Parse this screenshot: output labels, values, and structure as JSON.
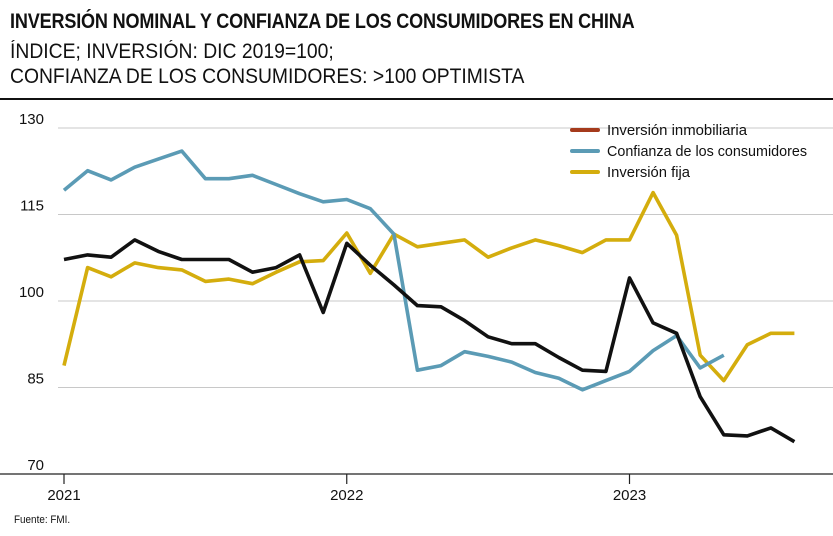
{
  "header": {
    "title": "INVERSIÓN NOMINAL Y CONFIANZA DE LOS CONSUMIDORES EN CHINA",
    "subtitle_line1": "ÍNDICE; INVERSIÓN: DIC 2019=100;",
    "subtitle_line2": "CONFIANZA DE LOS CONSUMIDORES: >100 OPTIMISTA"
  },
  "source": "Fuente: FMI.",
  "chart_data": {
    "type": "line",
    "title": "INVERSIÓN NOMINAL Y CONFIANZA DE LOS CONSUMIDORES EN CHINA",
    "xlabel": "",
    "ylabel": "",
    "ylim": [
      70,
      130
    ],
    "yticks": [
      70,
      85,
      100,
      115,
      130
    ],
    "xticks": [
      {
        "label": "2021",
        "x": 0
      },
      {
        "label": "2022",
        "x": 12
      },
      {
        "label": "2023",
        "x": 24
      }
    ],
    "xlim": [
      0,
      32
    ],
    "legend_position": "top-right",
    "grid": true,
    "series": [
      {
        "name": "Inversión inmobiliaria",
        "color": "#a53a1c",
        "x": [
          0,
          1,
          2,
          3,
          4,
          5,
          6,
          7,
          8,
          9,
          10,
          11,
          12,
          13,
          14,
          15,
          16,
          17,
          18,
          19,
          20,
          21,
          22,
          23,
          24,
          25,
          26,
          27,
          28,
          29,
          30,
          31
        ],
        "values": [
          107.2,
          108,
          107.6,
          110.6,
          108.6,
          107.2,
          107.2,
          107.2,
          105,
          105.8,
          108,
          98,
          110,
          106.2,
          102.8,
          99.2,
          99,
          96.6,
          93.8,
          92.6,
          92.6,
          90.2,
          88,
          87.8,
          104,
          96.2,
          94.4,
          83.4,
          76.8,
          76.6,
          78,
          75.6
        ]
      },
      {
        "name": "Confianza de los consumidores",
        "color": "#5b9bb5",
        "x": [
          0,
          1,
          2,
          3,
          4,
          5,
          6,
          7,
          8,
          9,
          10,
          11,
          12,
          13,
          14,
          15,
          16,
          17,
          18,
          19,
          20,
          21,
          22,
          23,
          24,
          25,
          26,
          27,
          28
        ],
        "values": [
          119.2,
          122.6,
          121,
          123.2,
          124.6,
          126,
          121.2,
          121.2,
          121.8,
          120.2,
          118.6,
          117.2,
          117.6,
          116,
          111.6,
          88,
          88.8,
          91.2,
          90.4,
          89.4,
          87.6,
          86.6,
          84.6,
          86.2,
          87.8,
          91.4,
          94,
          88.4,
          90.6
        ]
      },
      {
        "name": "Inversión fija",
        "color": "#d4ad0d",
        "x": [
          0,
          1,
          2,
          3,
          4,
          5,
          6,
          7,
          8,
          9,
          10,
          11,
          12,
          13,
          14,
          15,
          16,
          17,
          18,
          19,
          20,
          21,
          22,
          23,
          24,
          25,
          26,
          27,
          28,
          29,
          30,
          31
        ],
        "values": [
          88.8,
          105.8,
          104.2,
          106.6,
          105.8,
          105.4,
          103.4,
          103.8,
          103,
          105,
          106.8,
          107,
          111.8,
          104.8,
          111.6,
          109.4,
          110,
          110.6,
          107.6,
          109.2,
          110.6,
          109.6,
          108.4,
          110.6,
          110.6,
          118.8,
          111.4,
          90.6,
          86.2,
          92.4,
          94.4,
          94.4
        ]
      }
    ]
  }
}
